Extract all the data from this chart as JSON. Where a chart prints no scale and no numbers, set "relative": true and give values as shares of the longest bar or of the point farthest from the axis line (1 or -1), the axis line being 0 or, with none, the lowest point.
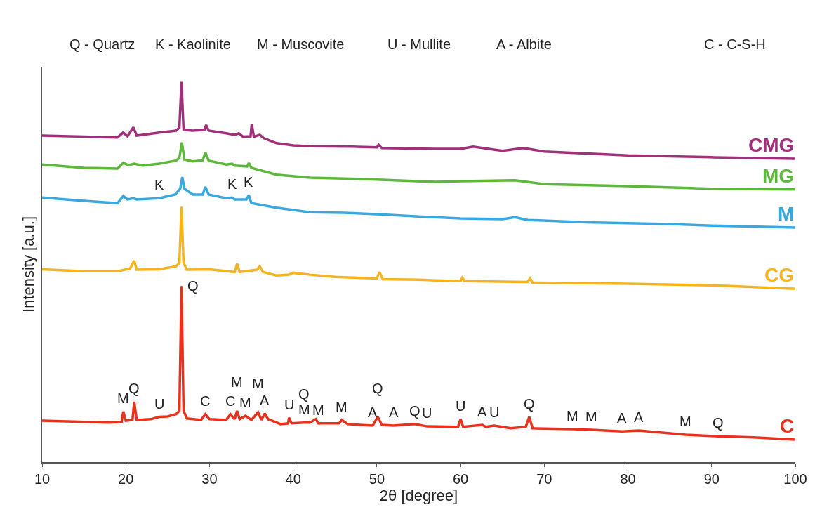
{
  "chart_data": {
    "type": "line",
    "relative": true,
    "xlabel": "2θ [degree]",
    "ylabel": "Intensity [a.u.]",
    "xlim": [
      10,
      100
    ],
    "xticks": [
      10,
      20,
      30,
      40,
      50,
      60,
      70,
      80,
      90,
      100
    ],
    "legend": false,
    "marker": "none",
    "line_style": "solid",
    "series": [
      {
        "name": "CMG",
        "color": "#a0307a",
        "x": [
          10,
          15,
          19,
          19.7,
          20.2,
          20.9,
          21.3,
          24,
          26,
          26.4,
          26.65,
          26.9,
          28,
          29.4,
          29.6,
          29.9,
          32,
          33,
          33.5,
          34,
          34.9,
          35.05,
          35.3,
          36,
          36.5,
          38,
          40,
          42,
          47,
          50,
          50.2,
          50.6,
          57,
          60,
          61.5,
          65,
          67.5,
          70,
          80,
          90,
          100
        ],
        "values": [
          0.859,
          0.856,
          0.854,
          0.867,
          0.857,
          0.881,
          0.859,
          0.867,
          0.872,
          0.88,
          1.0,
          0.874,
          0.872,
          0.874,
          0.887,
          0.872,
          0.865,
          0.861,
          0.865,
          0.856,
          0.857,
          0.889,
          0.856,
          0.861,
          0.852,
          0.839,
          0.833,
          0.831,
          0.83,
          0.828,
          0.835,
          0.826,
          0.824,
          0.824,
          0.83,
          0.819,
          0.826,
          0.817,
          0.807,
          0.802,
          0.798
        ]
      },
      {
        "name": "MG",
        "color": "#5cb83a",
        "x": [
          10,
          15,
          19,
          19.7,
          20.3,
          21,
          22,
          24,
          26,
          26.4,
          26.7,
          27,
          28,
          29.2,
          29.5,
          29.9,
          32,
          32.7,
          33,
          34.5,
          34.7,
          35,
          38,
          42,
          46,
          50,
          57,
          60,
          66.5,
          70,
          80,
          90,
          100
        ],
        "values": [
          0.783,
          0.774,
          0.772,
          0.787,
          0.781,
          0.785,
          0.78,
          0.785,
          0.793,
          0.8,
          0.841,
          0.796,
          0.791,
          0.794,
          0.815,
          0.793,
          0.783,
          0.785,
          0.78,
          0.778,
          0.787,
          0.774,
          0.756,
          0.748,
          0.746,
          0.743,
          0.737,
          0.739,
          0.741,
          0.731,
          0.726,
          0.719,
          0.717
        ]
      },
      {
        "name": "M",
        "color": "#3aa8e0",
        "x": [
          10,
          15,
          19,
          19.7,
          20.2,
          20.9,
          21.3,
          24,
          25.9,
          26.5,
          26.75,
          27,
          28,
          29.2,
          29.5,
          29.9,
          32,
          32.7,
          33,
          34.4,
          34.7,
          35,
          38,
          42,
          46,
          50,
          55,
          60,
          65,
          66.5,
          68,
          75,
          85,
          90,
          100
        ],
        "values": [
          0.696,
          0.687,
          0.681,
          0.7,
          0.691,
          0.694,
          0.691,
          0.694,
          0.704,
          0.719,
          0.75,
          0.719,
          0.704,
          0.704,
          0.724,
          0.704,
          0.694,
          0.696,
          0.691,
          0.691,
          0.702,
          0.681,
          0.669,
          0.657,
          0.656,
          0.652,
          0.646,
          0.641,
          0.639,
          0.644,
          0.637,
          0.631,
          0.626,
          0.622,
          0.617
        ]
      },
      {
        "name": "CG",
        "color": "#f5b320",
        "x": [
          10,
          15,
          19,
          20.5,
          21,
          21.3,
          24,
          26,
          26.4,
          26.65,
          26.9,
          27.3,
          30,
          33,
          33.3,
          33.6,
          35.7,
          36,
          36.4,
          38,
          39.5,
          40,
          42,
          45,
          50,
          50.3,
          50.7,
          55,
          57,
          60,
          60.2,
          60.5,
          68,
          68.3,
          68.6,
          80,
          90,
          100
        ],
        "values": [
          0.507,
          0.502,
          0.502,
          0.509,
          0.53,
          0.506,
          0.507,
          0.515,
          0.524,
          0.672,
          0.524,
          0.506,
          0.507,
          0.5,
          0.522,
          0.5,
          0.506,
          0.515,
          0.5,
          0.491,
          0.493,
          0.498,
          0.493,
          0.487,
          0.483,
          0.5,
          0.481,
          0.48,
          0.478,
          0.476,
          0.485,
          0.476,
          0.474,
          0.483,
          0.472,
          0.469,
          0.465,
          0.456
        ]
      },
      {
        "name": "C",
        "color": "#e8321e",
        "x": [
          10,
          18,
          19.5,
          19.7,
          20.0,
          20.8,
          21.0,
          21.3,
          23,
          24,
          25,
          26,
          26.4,
          26.65,
          26.9,
          27.3,
          29,
          29.5,
          30,
          32,
          32.5,
          33,
          33.3,
          33.6,
          34.3,
          35,
          35.8,
          36.2,
          36.6,
          37,
          38.5,
          39.4,
          39.5,
          39.8,
          41.3,
          42,
          42.7,
          43,
          45.5,
          45.8,
          46.5,
          49.5,
          50.1,
          50.6,
          52,
          54.5,
          56,
          59.7,
          60,
          60.3,
          62.6,
          63,
          64,
          66,
          67.8,
          68.2,
          68.6,
          73.4,
          75.6,
          79.3,
          81.3,
          86.9,
          90.8,
          95,
          100
        ],
        "values": [
          0.109,
          0.104,
          0.106,
          0.133,
          0.109,
          0.111,
          0.159,
          0.111,
          0.113,
          0.119,
          0.12,
          0.126,
          0.135,
          0.463,
          0.135,
          0.115,
          0.111,
          0.126,
          0.113,
          0.111,
          0.126,
          0.113,
          0.135,
          0.113,
          0.122,
          0.111,
          0.131,
          0.111,
          0.128,
          0.113,
          0.1,
          0.102,
          0.117,
          0.102,
          0.104,
          0.104,
          0.113,
          0.102,
          0.102,
          0.111,
          0.1,
          0.096,
          0.119,
          0.098,
          0.096,
          0.1,
          0.094,
          0.093,
          0.113,
          0.093,
          0.098,
          0.093,
          0.096,
          0.089,
          0.093,
          0.119,
          0.089,
          0.087,
          0.085,
          0.081,
          0.083,
          0.072,
          0.068,
          0.065,
          0.059
        ]
      }
    ],
    "annotations": [
      "Q - Quartz",
      "K - Kaolinite",
      "M - Muscovite",
      "U - Mullite",
      "A - Albite",
      "C - C-S-H",
      {
        "text": "M",
        "x": 19.7,
        "y": 0.133
      },
      {
        "text": "Q",
        "x": 21.0,
        "y": 0.159
      },
      {
        "text": "U",
        "x": 24,
        "y": 0.119
      },
      {
        "text": "Q",
        "x": 26.65,
        "y": 0.463
      },
      {
        "text": "C",
        "x": 29.5,
        "y": 0.126
      },
      {
        "text": "C",
        "x": 32.5,
        "y": 0.126
      },
      {
        "text": "M",
        "x": 34.3,
        "y": 0.122
      },
      {
        "text": "M",
        "x": 33.3,
        "y": 0.135
      },
      {
        "text": "A",
        "x": 36.6,
        "y": 0.128
      },
      {
        "text": "M",
        "x": 35.8,
        "y": 0.131
      },
      {
        "text": "U",
        "x": 39.5,
        "y": 0.117
      },
      {
        "text": "M",
        "x": 41.3,
        "y": 0.104
      },
      {
        "text": "Q",
        "x": 41.3,
        "y": 0.104
      },
      {
        "text": "M",
        "x": 43,
        "y": 0.102
      },
      {
        "text": "M",
        "x": 45.8,
        "y": 0.111
      },
      {
        "text": "A",
        "x": 49.5,
        "y": 0.096
      },
      {
        "text": "Q",
        "x": 50.1,
        "y": 0.119
      },
      {
        "text": "A",
        "x": 52,
        "y": 0.096
      },
      {
        "text": "Q",
        "x": 54.5,
        "y": 0.1
      },
      {
        "text": "U",
        "x": 56,
        "y": 0.094
      },
      {
        "text": "U",
        "x": 60,
        "y": 0.113
      },
      {
        "text": "A",
        "x": 62.6,
        "y": 0.098
      },
      {
        "text": "U",
        "x": 64,
        "y": 0.096
      },
      {
        "text": "Q",
        "x": 68.2,
        "y": 0.119
      },
      {
        "text": "M",
        "x": 73.4,
        "y": 0.087
      },
      {
        "text": "M",
        "x": 75.6,
        "y": 0.085
      },
      {
        "text": "A",
        "x": 79.3,
        "y": 0.081
      },
      {
        "text": "A",
        "x": 81.3,
        "y": 0.083
      },
      {
        "text": "M",
        "x": 86.9,
        "y": 0.072
      },
      {
        "text": "Q",
        "x": 90.8,
        "y": 0.068
      },
      {
        "text": "K",
        "x": 24,
        "y": 0.694
      },
      {
        "text": "K",
        "x": 32.7,
        "y": 0.696
      },
      {
        "text": "K",
        "x": 34.7,
        "y": 0.702
      }
    ]
  }
}
